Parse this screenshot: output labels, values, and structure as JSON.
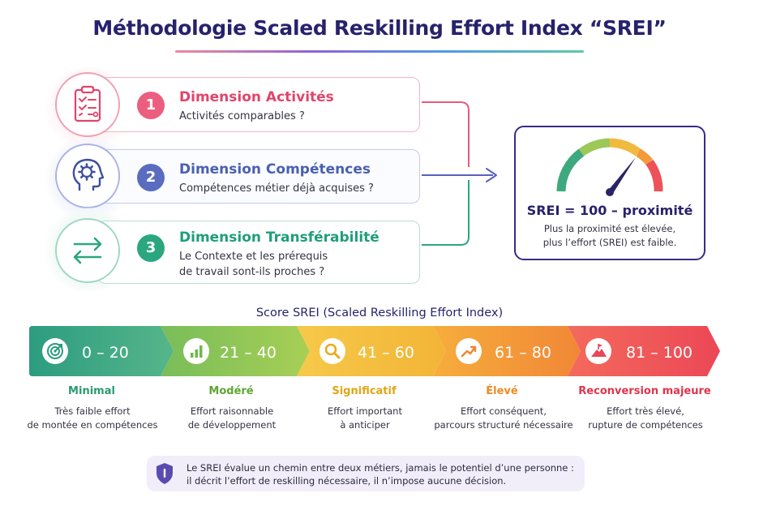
{
  "title": "Méthodologie Scaled Reskilling Effort Index “SREI”",
  "dimensions": [
    {
      "number": "1",
      "title": "Dimension Activités",
      "lines": [
        "Activités comparables ?"
      ],
      "color": "#e0456b",
      "icon": "clipboard-checklist-icon"
    },
    {
      "number": "2",
      "title": "Dimension Compétences",
      "lines": [
        "Compétences métier déjà acquises ?"
      ],
      "color": "#4a5fb0",
      "icon": "head-gear-icon"
    },
    {
      "number": "3",
      "title": "Dimension Transférabilité",
      "lines": [
        "Le Contexte et les prérequis",
        "de travail sont-ils proches ?"
      ],
      "color": "#1f9e7a",
      "icon": "swap-arrows-icon"
    }
  ],
  "srei_box": {
    "icon": "gauge-icon",
    "formula": "SREI = 100 – proximité",
    "note_lines": [
      "Plus la proximité est élevée,",
      "plus l’effort (SREI) est faible."
    ]
  },
  "scale": {
    "title": "Score SREI (Scaled Reskilling Effort Index)",
    "bands": [
      {
        "range": "0 – 20",
        "name": "Minimal",
        "desc": [
          "Très faible effort",
          "de montée en compétences"
        ],
        "color": "#2f9e83",
        "name_color": "#2b9a6e",
        "icon": "target-icon"
      },
      {
        "range": "21 – 40",
        "name": "Modéré",
        "desc": [
          "Effort raisonnable",
          "de développement"
        ],
        "color": "#8cc455",
        "name_color": "#5ea532",
        "icon": "bar-chart-icon"
      },
      {
        "range": "41 – 60",
        "name": "Significatif",
        "desc": [
          "Effort important",
          "à anticiper"
        ],
        "color": "#f4c23a",
        "name_color": "#e0a515",
        "icon": "magnifier-icon"
      },
      {
        "range": "61 – 80",
        "name": "Élevé",
        "desc": [
          "Effort conséquent,",
          "parcours structuré nécessaire"
        ],
        "color": "#f39a3a",
        "name_color": "#ee8a22",
        "icon": "trend-up-icon"
      },
      {
        "range": "81 – 100",
        "name": "Reconversion majeure",
        "desc": [
          "Effort très élevé,",
          "rupture de compétences"
        ],
        "color": "#ee4e58",
        "name_color": "#e0344c",
        "icon": "mountain-flag-icon"
      }
    ]
  },
  "footnote": {
    "icon": "shield-info-icon",
    "lines": [
      "Le SREI évalue un chemin entre deux métiers, jamais le potentiel d’une personne :",
      "il décrit l’effort de reskilling nécessaire, il n’impose aucune décision."
    ]
  }
}
